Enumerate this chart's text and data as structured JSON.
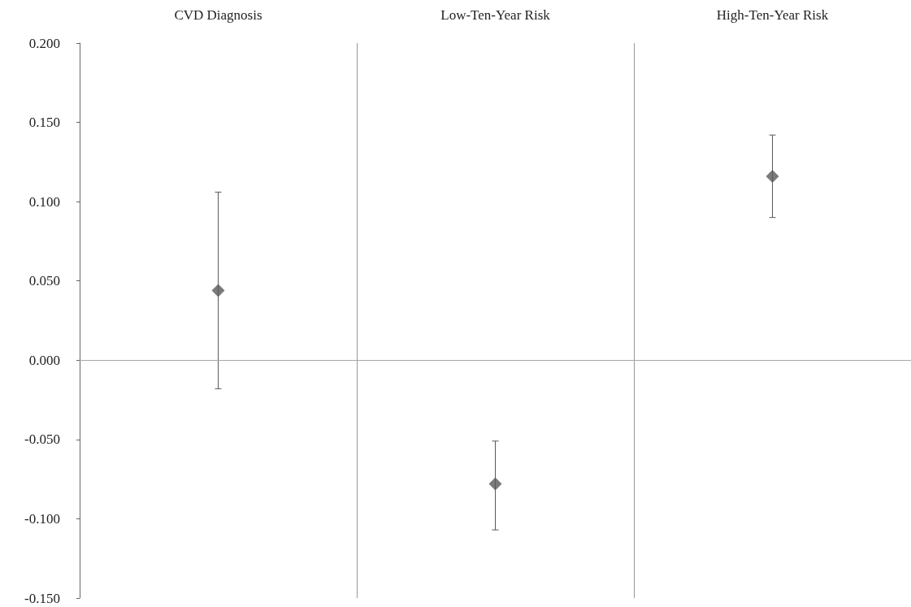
{
  "chart_data": {
    "type": "scatter",
    "categories": [
      "CVD Diagnosis",
      "Low-Ten-Year Risk",
      "High-Ten-Year Risk"
    ],
    "values": [
      0.044,
      -0.078,
      0.116
    ],
    "errors": [
      [
        -0.018,
        0.106
      ],
      [
        -0.107,
        -0.051
      ],
      [
        0.09,
        0.142
      ]
    ],
    "color": "#595959",
    "marker": "diamond",
    "grid": "x",
    "ylim": [
      -0.15,
      0.2
    ],
    "yticks": [
      {
        "value": -0.15,
        "label": "-0.150"
      },
      {
        "value": -0.1,
        "label": "-0.100"
      },
      {
        "value": -0.05,
        "label": "-0.050"
      },
      {
        "value": 0,
        "label": "0.000"
      },
      {
        "value": 0.05,
        "label": "0.050"
      },
      {
        "value": 0.1,
        "label": "0.100"
      },
      {
        "value": 0.15,
        "label": "0.150"
      },
      {
        "value": 0.2,
        "label": "0.200"
      }
    ],
    "ref_lines": [
      {
        "axis": "y",
        "value": 0,
        "color": "#a6a6a6"
      }
    ]
  }
}
